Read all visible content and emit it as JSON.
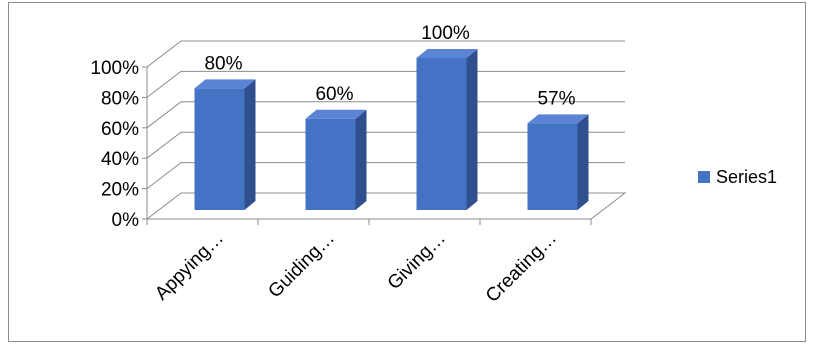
{
  "chart_data": {
    "type": "bar",
    "style": "3d-column",
    "categories": [
      "Appying…",
      "Guiding…",
      "Giving…",
      "Creating…"
    ],
    "series": [
      {
        "name": "Series1",
        "values": [
          80,
          60,
          100,
          57
        ],
        "color": "#4472c4"
      }
    ],
    "data_labels": [
      "80%",
      "60%",
      "100%",
      "57%"
    ],
    "y_ticks": [
      "0%",
      "20%",
      "40%",
      "60%",
      "80%",
      "100%"
    ],
    "ylim": [
      0,
      100
    ],
    "grid": true,
    "legend": "right"
  }
}
